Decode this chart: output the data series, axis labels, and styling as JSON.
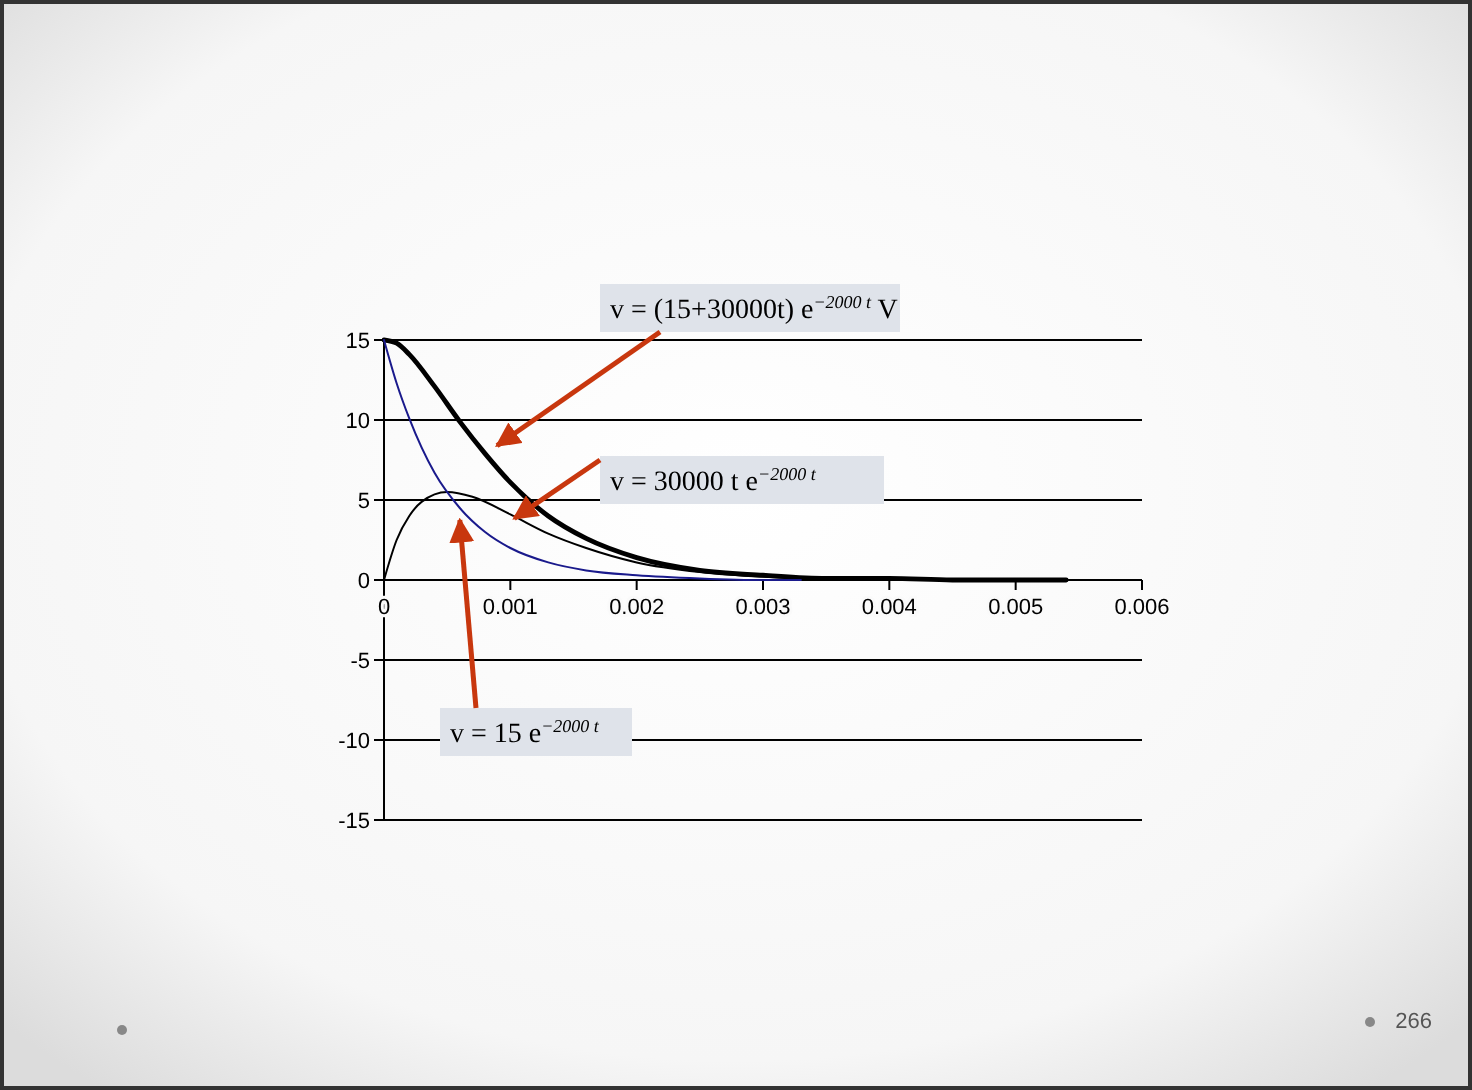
{
  "chart_data": {
    "type": "line",
    "xlim": [
      0,
      0.006
    ],
    "xticks": [
      0,
      0.001,
      0.002,
      0.003,
      0.004,
      0.005,
      0.006
    ],
    "ylim": [
      -15,
      15
    ],
    "yticks": [
      -15,
      -10,
      -5,
      0,
      5,
      10,
      15
    ],
    "grid": "y",
    "marker": "none",
    "line_style": "solid",
    "series": [
      {
        "color": "#000000",
        "x": [
          0,
          0.0001,
          0.0002,
          0.0004,
          0.0006,
          0.0008,
          0.001,
          0.0013,
          0.0016,
          0.002,
          0.0025,
          0.003,
          0.0035,
          0.004,
          0.0045,
          0.0054
        ],
        "values": [
          15,
          14.8,
          14.1,
          12.1,
          9.9,
          7.9,
          6.1,
          4.0,
          2.6,
          1.4,
          0.6,
          0.3,
          0.1,
          0.1,
          0,
          0
        ]
      },
      {
        "color": "#000000",
        "x": [
          0,
          0.0001,
          0.0002,
          0.0003,
          0.0005,
          0.0007,
          0.001,
          0.0013,
          0.0016,
          0.002,
          0.0025,
          0.003,
          0.0033
        ],
        "values": [
          0,
          2.5,
          4.0,
          4.9,
          5.5,
          5.2,
          4.1,
          2.9,
          2.0,
          1.1,
          0.5,
          0.2,
          0.1
        ]
      },
      {
        "color": "#1a1a8c",
        "x": [
          0,
          0.0001,
          0.0002,
          0.0004,
          0.0006,
          0.0008,
          0.001,
          0.0013,
          0.0016,
          0.002,
          0.0025,
          0.003,
          0.0033
        ],
        "values": [
          15,
          12.3,
          10.1,
          6.7,
          4.5,
          3.0,
          2.0,
          1.1,
          0.6,
          0.3,
          0.1,
          0,
          0
        ]
      }
    ],
    "annotations": [
      {
        "text": "v = (15+30000t) e$^{−2000 t}$  V",
        "x": 0.0008,
        "y": 7.9
      },
      {
        "text": "v = 30000 t e$^{−2000 t}$",
        "x": 0.001,
        "y": 4.1
      },
      {
        "text": "v = 15 e$^{−2000 t}$",
        "x": 0.0006,
        "y": 4.5
      },
      "266"
    ]
  }
}
